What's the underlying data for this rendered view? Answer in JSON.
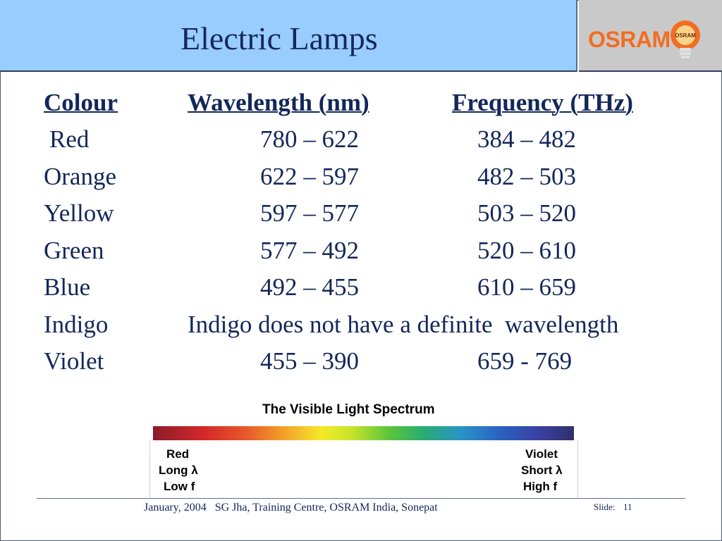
{
  "title": "Electric Lamps",
  "logo": {
    "text": "OSRAM",
    "bulb_text": "OSRAM",
    "icon": "lightbulb-icon",
    "color": "#f26d21"
  },
  "table": {
    "headers": [
      "Colour",
      "Wavelength (nm)",
      "Frequency (THz)"
    ],
    "rows": [
      {
        "colour": "Red",
        "wavelength": "780 – 622",
        "frequency": "384 – 482"
      },
      {
        "colour": "Orange",
        "wavelength": "622 – 597",
        "frequency": "482 – 503"
      },
      {
        "colour": "Yellow",
        "wavelength": "597 – 577",
        "frequency": "503 – 520"
      },
      {
        "colour": "Green",
        "wavelength": "577 – 492",
        "frequency": "520 – 610"
      },
      {
        "colour": "Blue",
        "wavelength": "492 – 455",
        "frequency": "610 – 659"
      },
      {
        "colour": "Indigo",
        "note": "Indigo does not have a definite  wavelength"
      },
      {
        "colour": "Violet",
        "wavelength": "455 – 390",
        "frequency": "659 - 769"
      }
    ]
  },
  "spectrum": {
    "title": "The Visible Light Spectrum",
    "left": [
      "Red",
      "Long λ",
      "Low f"
    ],
    "right": [
      "Violet",
      "Short λ",
      "High f"
    ]
  },
  "footer": {
    "text": "January, 2004   SG Jha, Training Centre, OSRAM India, Sonepat",
    "slide_label": "Slide:",
    "slide_number": "11"
  },
  "colors": {
    "title_bar": "#99ccff",
    "text": "#13275a",
    "logo_bg": "#c9c9c9"
  }
}
